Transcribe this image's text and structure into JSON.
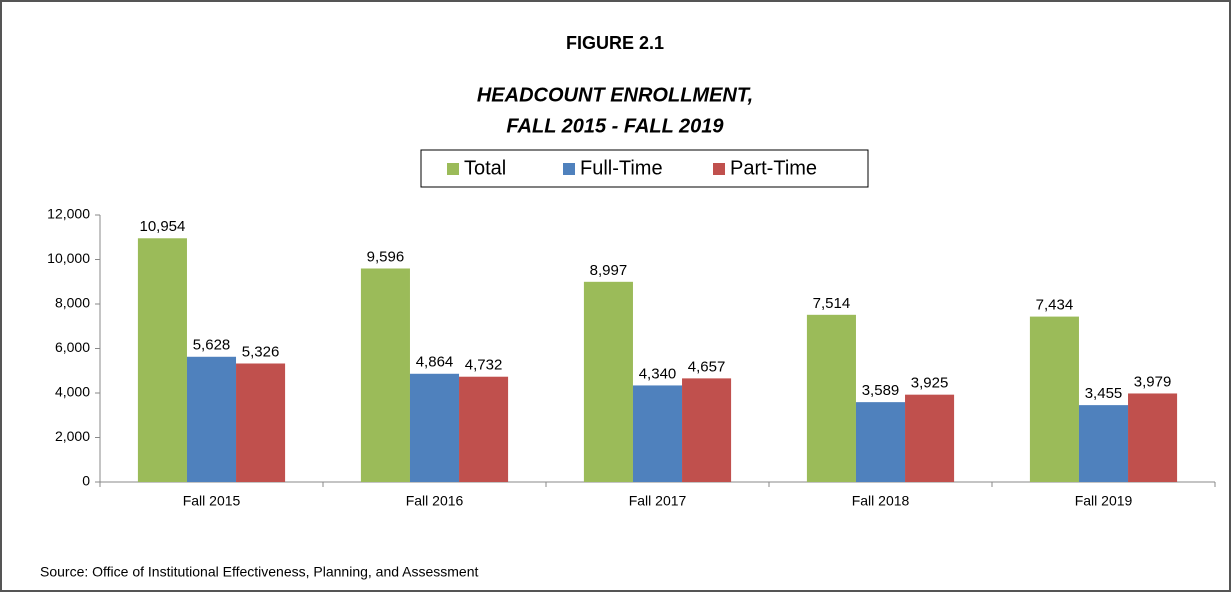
{
  "chart_data": {
    "type": "bar",
    "title": "FIGURE 2.1",
    "subtitle": [
      "HEADCOUNT ENROLLMENT,",
      "FALL 2015 - FALL 2019"
    ],
    "categories": [
      "Fall 2015",
      "Fall 2016",
      "Fall 2017",
      "Fall 2018",
      "Fall 2019"
    ],
    "series": [
      {
        "name": "Total",
        "color": "#9bbb59",
        "values": [
          10954,
          9596,
          8997,
          7514,
          7434
        ],
        "value_labels": [
          "10,954",
          "9,596",
          "8,997",
          "7,514",
          "7,434"
        ]
      },
      {
        "name": "Full-Time",
        "color": "#4f81bd",
        "values": [
          5628,
          4864,
          4340,
          3589,
          3455
        ],
        "value_labels": [
          "5,628",
          "4,864",
          "4,340",
          "3,589",
          "3,455"
        ]
      },
      {
        "name": "Part-Time",
        "color": "#c0504d",
        "values": [
          5326,
          4732,
          4657,
          3925,
          3979
        ],
        "value_labels": [
          "5,326",
          "4,732",
          "4,657",
          "3,925",
          "3,979"
        ]
      }
    ],
    "ylim": [
      0,
      12000
    ],
    "yticks": [
      0,
      {
        "value": 2000,
        "label": "2,000"
      },
      {
        "value": 4000,
        "label": "4,000"
      },
      {
        "value": 6000,
        "label": "6,000"
      },
      {
        "value": 8000,
        "label": "8,000"
      },
      {
        "value": 10000,
        "label": "10,000"
      },
      {
        "value": 12000,
        "label": "12,000"
      }
    ],
    "legend": "top",
    "source": "Source: Office of Institutional Effectiveness, Planning, and Assessment"
  }
}
